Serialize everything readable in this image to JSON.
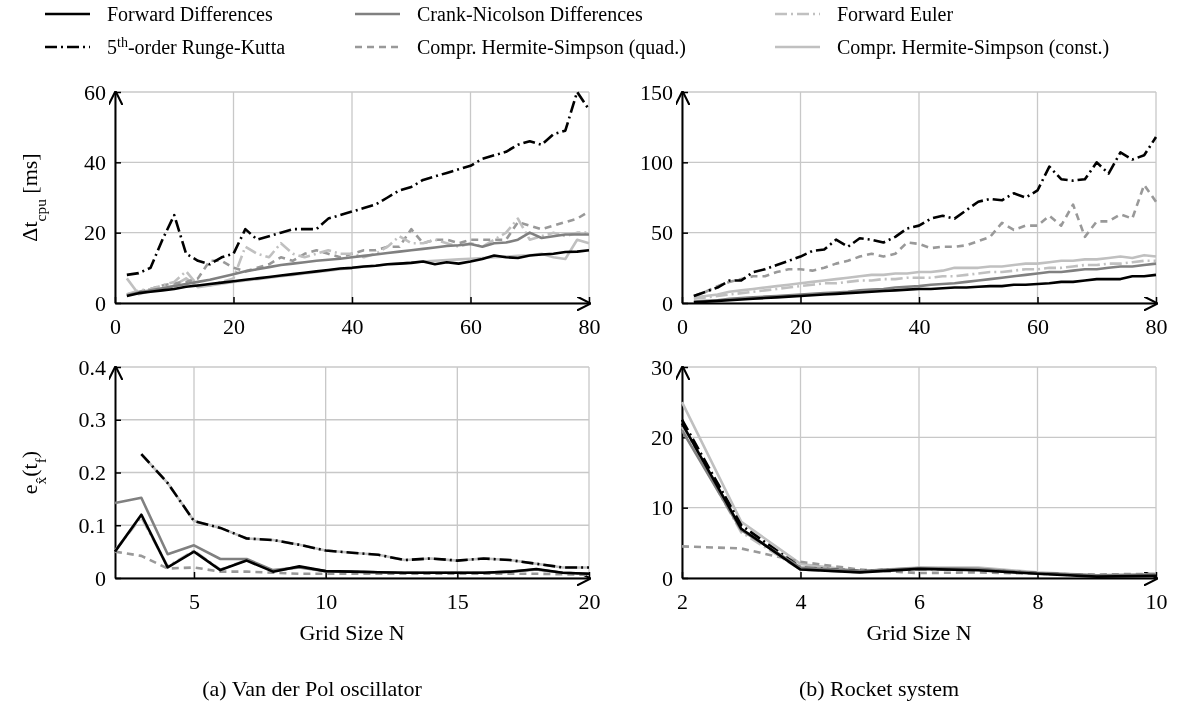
{
  "chart_data": [
    {
      "type": "line",
      "ylabel": "Δt$_{cpu}$ [ms]",
      "xlim": [
        0,
        80
      ],
      "xticks": [
        0,
        20,
        40,
        60,
        80
      ],
      "ylim": [
        0,
        60
      ],
      "yticks": [
        0,
        20,
        40,
        60
      ],
      "grid": true,
      "legend": "top",
      "x": [
        2,
        4,
        6,
        8,
        10,
        12,
        14,
        16,
        18,
        20,
        22,
        24,
        26,
        28,
        30,
        32,
        34,
        36,
        38,
        40,
        42,
        44,
        46,
        48,
        50,
        52,
        54,
        56,
        58,
        60,
        62,
        64,
        66,
        68,
        70,
        72,
        74,
        76,
        78,
        80
      ],
      "series": [
        {
          "name": "Forward Differences",
          "color": "#000000",
          "line_style": "solid",
          "values": [
            2.0,
            2.8,
            3.2,
            3.6,
            4.0,
            4.6,
            5.0,
            5.4,
            5.8,
            6.2,
            6.6,
            7.0,
            7.4,
            7.8,
            8.2,
            8.6,
            9.0,
            9.4,
            9.8,
            10.0,
            10.4,
            10.6,
            11,
            11.2,
            11.4,
            11.8,
            11,
            11.6,
            11.2,
            11.8,
            12.5,
            13.5,
            13,
            12.8,
            13.5,
            13.8,
            14,
            14.5,
            14.6,
            15
          ]
        },
        {
          "name": "Crank-Nicolson Differences",
          "color": "#808080",
          "line_style": "solid",
          "values": [
            2.2,
            3,
            3.6,
            4.2,
            4.8,
            5.4,
            6,
            6.6,
            7.4,
            8.2,
            9,
            9.6,
            10.2,
            10.8,
            11.2,
            11.6,
            12,
            12.3,
            12.6,
            13,
            13.4,
            13.8,
            14.2,
            14.6,
            15,
            15.4,
            15.8,
            16.2,
            16.4,
            16.8,
            16,
            17,
            17.2,
            18,
            20,
            18.5,
            19,
            19.5,
            19.5,
            19.5
          ]
        },
        {
          "name": "Forward Euler",
          "color": "#c0c0c0",
          "line_style": "dashdot",
          "values": [
            2.5,
            3.5,
            4,
            5,
            6,
            9,
            5,
            5,
            6,
            7,
            16,
            14,
            13,
            17,
            14,
            13,
            14,
            15,
            14,
            14,
            13,
            14,
            16,
            19,
            17,
            17,
            18,
            17,
            16,
            17,
            16,
            18,
            20,
            24,
            18,
            19,
            20,
            19,
            20,
            20
          ]
        },
        {
          "name": "5$^{th}$-order Runge-Kutta",
          "color": "#000000",
          "line_style": "dashdot",
          "values": [
            8,
            8.5,
            10,
            18,
            25,
            14,
            12,
            11,
            13,
            14,
            21,
            18,
            19,
            20,
            21,
            21,
            21,
            24,
            25,
            26,
            27,
            28,
            30,
            32,
            33,
            35,
            36,
            37,
            38,
            39,
            41,
            42,
            43,
            45,
            46,
            45,
            48,
            49,
            60,
            55
          ]
        },
        {
          "name": "Compr. Hermite-Simpson (quad.)",
          "color": "#999999",
          "line_style": "dashed",
          "values": [
            2.4,
            3.2,
            4,
            5,
            5.6,
            6,
            7,
            12,
            12,
            10,
            9,
            10,
            11,
            13,
            12,
            14,
            15,
            14,
            13,
            14,
            15,
            15,
            16,
            16,
            21,
            17,
            18,
            18,
            17,
            18,
            18,
            18,
            18,
            23,
            22,
            21,
            22,
            23,
            24,
            26
          ]
        },
        {
          "name": "Compr. Hermite-Simpson (const.)",
          "color": "#c0c0c0",
          "line_style": "solid",
          "values": [
            7,
            2.5,
            3.5,
            4,
            5,
            7,
            4.5,
            5,
            5.5,
            6,
            6.4,
            6.8,
            7.2,
            7.6,
            8,
            8.4,
            8.8,
            9.2,
            9.6,
            10,
            10.3,
            10.6,
            11,
            11.2,
            11.5,
            11.8,
            12,
            12.2,
            12.4,
            12.6,
            12.8,
            13,
            13.2,
            13.4,
            13.6,
            14,
            13,
            12.5,
            18,
            17
          ]
        }
      ]
    },
    {
      "type": "line",
      "xlim": [
        0,
        80
      ],
      "xticks": [
        0,
        20,
        40,
        60,
        80
      ],
      "ylim": [
        0,
        150
      ],
      "yticks": [
        0,
        50,
        100,
        150
      ],
      "grid": true,
      "x": [
        2,
        4,
        6,
        8,
        10,
        12,
        14,
        16,
        18,
        20,
        22,
        24,
        26,
        28,
        30,
        32,
        34,
        36,
        38,
        40,
        42,
        44,
        46,
        48,
        50,
        52,
        54,
        56,
        58,
        60,
        62,
        64,
        66,
        68,
        70,
        72,
        74,
        76,
        78,
        80
      ],
      "series": [
        {
          "color": "#000000",
          "line_style": "solid",
          "values": [
            0.5,
            1,
            1.5,
            2,
            2.5,
            3,
            3.5,
            4,
            4.5,
            5,
            5.5,
            6,
            6.5,
            7,
            7.5,
            8,
            8.5,
            9,
            9.5,
            10,
            10,
            10.5,
            11,
            11,
            11.5,
            12,
            12,
            13,
            13,
            13.5,
            14,
            15,
            15,
            16,
            17,
            17,
            17,
            19,
            19,
            20
          ]
        },
        {
          "color": "#808080",
          "line_style": "solid",
          "values": [
            1,
            1.5,
            2,
            3,
            3.5,
            4,
            4.5,
            5,
            5.5,
            6,
            6.5,
            7,
            7.5,
            8,
            9,
            9.5,
            10,
            11,
            11.5,
            12,
            13,
            13.5,
            14,
            15,
            16,
            17,
            18,
            19,
            20,
            21,
            22,
            22,
            23,
            24,
            24,
            25,
            26,
            26,
            27,
            28
          ]
        },
        {
          "color": "#c0c0c0",
          "line_style": "dashdot",
          "values": [
            3,
            4,
            5,
            6,
            7,
            8,
            9,
            10,
            11,
            12,
            13,
            14,
            14,
            15,
            16,
            16,
            17,
            17,
            18,
            18,
            18,
            19,
            19,
            20,
            21,
            22,
            22,
            23,
            24,
            24,
            25,
            25,
            26,
            27,
            27,
            28,
            28,
            29,
            30,
            30
          ]
        },
        {
          "color": "#000000",
          "line_style": "dashdot",
          "values": [
            5,
            8,
            11,
            16,
            16,
            22,
            24,
            27,
            30,
            33,
            37,
            38,
            45,
            40,
            46,
            45,
            43,
            47,
            53,
            55,
            60,
            62,
            60,
            66,
            72,
            74,
            73,
            78,
            75,
            80,
            97,
            88,
            87,
            88,
            100,
            92,
            107,
            102,
            105,
            118
          ]
        },
        {
          "color": "#999999",
          "line_style": "dashed",
          "values": [
            5,
            8,
            12,
            15,
            17,
            19,
            19,
            22,
            24,
            24,
            23,
            25,
            28,
            30,
            33,
            35,
            33,
            35,
            43,
            42,
            39,
            40,
            40,
            41,
            44,
            47,
            57,
            52,
            55,
            55,
            62,
            55,
            70,
            47,
            58,
            58,
            63,
            60,
            84,
            72
          ]
        },
        {
          "color": "#c0c0c0",
          "line_style": "solid",
          "values": [
            4,
            5,
            6,
            8,
            9,
            10,
            11,
            12,
            13,
            14,
            15,
            16,
            17,
            18,
            19,
            20,
            20,
            21,
            21,
            22,
            22,
            23,
            25,
            25,
            25,
            26,
            26,
            27,
            28,
            28,
            29,
            30,
            30,
            31,
            31,
            32,
            33,
            32,
            34,
            33
          ]
        }
      ]
    },
    {
      "type": "line",
      "ylabel": "e$_{x̂}$(t$_{f}$)",
      "xlabel": "Grid Size N",
      "xlim": [
        2,
        20
      ],
      "xticks": [
        5,
        10,
        15,
        20
      ],
      "ylim": [
        0,
        0.4
      ],
      "yticks": [
        0,
        0.1,
        0.2,
        0.3,
        0.4
      ],
      "grid": true,
      "annotations": [
        "(a) Van der Pol oscillator"
      ],
      "x": [
        2,
        3,
        4,
        5,
        6,
        7,
        8,
        9,
        10,
        11,
        12,
        13,
        14,
        15,
        16,
        17,
        18,
        19,
        20
      ],
      "series": [
        {
          "color": "#000000",
          "line_style": "solid",
          "values": [
            0.05,
            0.12,
            0.02,
            0.05,
            0.015,
            0.033,
            0.012,
            0.022,
            0.013,
            0.012,
            0.011,
            0.01,
            0.01,
            0.01,
            0.01,
            0.012,
            0.017,
            0.01,
            0.008
          ]
        },
        {
          "color": "#808080",
          "line_style": "solid",
          "values": [
            0.142,
            0.152,
            0.045,
            0.062,
            0.036,
            0.036,
            0.015,
            0.02,
            0.013,
            0.012,
            0.011,
            0.01,
            0.01,
            0.01,
            0.01,
            0.012,
            0.016,
            0.01,
            0.008
          ]
        },
        {
          "color": "#c0c0c0",
          "line_style": "dashdot",
          "values": [
            0.052,
            0.115,
            0.022,
            0.052,
            0.016,
            0.034,
            0.013,
            0.021,
            0.013,
            0.012,
            0.011,
            0.01,
            0.01,
            0.01,
            0.01,
            0.012,
            0.016,
            0.01,
            0.008
          ]
        },
        {
          "color": "#000000",
          "line_style": "dashdot",
          "values": [
            null,
            0.235,
            0.18,
            0.108,
            0.095,
            0.075,
            0.072,
            0.063,
            0.052,
            0.048,
            0.044,
            0.034,
            0.037,
            0.033,
            0.037,
            0.034,
            0.027,
            0.02,
            0.02
          ]
        },
        {
          "color": "#999999",
          "line_style": "dashed",
          "values": [
            0.05,
            0.042,
            0.018,
            0.02,
            0.012,
            0.012,
            0.01,
            0.008,
            0.008,
            0.008,
            0.008,
            0.008,
            0.008,
            0.008,
            0.008,
            0.008,
            0.008,
            0.007,
            0.006
          ]
        },
        {
          "color": "#c0c0c0",
          "line_style": "solid",
          "values": [
            null,
            0.235,
            0.18,
            0.108,
            0.095,
            0.075,
            0.072,
            0.063,
            0.052,
            0.048,
            0.044,
            0.034,
            0.037,
            0.033,
            0.037,
            0.034,
            0.027,
            0.02,
            0.02
          ]
        }
      ]
    },
    {
      "type": "line",
      "xlabel": "Grid Size N",
      "xlim": [
        2,
        10
      ],
      "xticks": [
        2,
        4,
        6,
        8,
        10
      ],
      "ylim": [
        0,
        30
      ],
      "yticks": [
        0,
        10,
        20,
        30
      ],
      "grid": true,
      "annotations": [
        "(b) Rocket system"
      ],
      "x": [
        2,
        3,
        4,
        5,
        6,
        7,
        8,
        9,
        10
      ],
      "series": [
        {
          "color": "#000000",
          "line_style": "solid",
          "values": [
            22,
            7,
            1.2,
            0.8,
            1.3,
            1.1,
            0.6,
            0.2,
            0.3
          ]
        },
        {
          "color": "#808080",
          "line_style": "solid",
          "values": [
            21,
            6.8,
            1.5,
            1,
            1.4,
            1.3,
            0.7,
            0.4,
            0.5
          ]
        },
        {
          "color": "#c0c0c0",
          "line_style": "dashdot",
          "values": [
            21.5,
            6.5,
            1.2,
            0.8,
            1.4,
            1.2,
            0.6,
            0.3,
            0.4
          ]
        },
        {
          "color": "#000000",
          "line_style": "dashdot",
          "values": [
            22.5,
            7.5,
            1.5,
            1,
            1.3,
            1.2,
            0.7,
            0.3,
            0.4
          ]
        },
        {
          "color": "#999999",
          "line_style": "dashed",
          "values": [
            4.5,
            4.2,
            2.3,
            1.2,
            0.7,
            0.8,
            0.6,
            0.5,
            0.6
          ]
        },
        {
          "color": "#c0c0c0",
          "line_style": "solid",
          "values": [
            25,
            8,
            2,
            1,
            1.5,
            1.5,
            0.8,
            0.4,
            0.5
          ]
        }
      ]
    }
  ]
}
